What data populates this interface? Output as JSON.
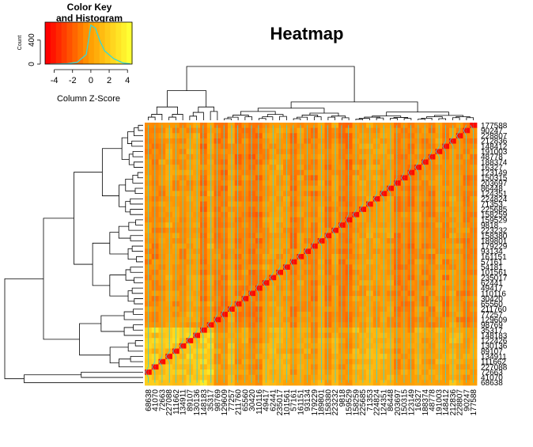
{
  "chart_data": {
    "type": "heatmap",
    "title": "Heatmap",
    "color_key": {
      "title_line1": "Color Key",
      "title_line2": "and Histogram",
      "xlabel": "Column Z-Score",
      "ylabel": "Count",
      "x_ticks": [
        "-4",
        "-2",
        "0",
        "2",
        "4"
      ],
      "y_ticks": [
        "0",
        "400"
      ],
      "x_range": [
        -5,
        4.5
      ],
      "y_range": [
        0,
        700
      ],
      "histogram": [
        [
          -4.5,
          0
        ],
        [
          -3.5,
          2
        ],
        [
          -2.5,
          8
        ],
        [
          -1.5,
          30
        ],
        [
          -0.5,
          160
        ],
        [
          0.0,
          650
        ],
        [
          0.5,
          600
        ],
        [
          1.0,
          380
        ],
        [
          1.5,
          220
        ],
        [
          2.5,
          90
        ],
        [
          3.5,
          20
        ],
        [
          4.3,
          5
        ]
      ]
    },
    "colors": {
      "low": "#ff0000",
      "mid": "#ff9900",
      "high": "#ffff33",
      "trace": "#36d7d7",
      "dendrogram": "#000000"
    },
    "row_labels": [
      "177588",
      "90247",
      "228807",
      "212836",
      "148412",
      "191003",
      "48778",
      "188374",
      "16327",
      "123149",
      "150315",
      "203697",
      "86448",
      "124351",
      "224824",
      "71353",
      "225685",
      "158259",
      "159529",
      "9818",
      "223232",
      "158380",
      "189801",
      "179229",
      "93134",
      "161151",
      "57161",
      "54181",
      "101561",
      "235017",
      "62441",
      "49417",
      "110116",
      "30420",
      "65560",
      "211760",
      "77257",
      "129609",
      "98769",
      "35317",
      "148183",
      "122426",
      "130136",
      "89107",
      "134911",
      "111662",
      "227088",
      "72663",
      "41070",
      "68638"
    ],
    "column_labels": [
      "68638",
      "41070",
      "72663",
      "227088",
      "111662",
      "134911",
      "89107",
      "130136",
      "148183",
      "35317",
      "98769",
      "129609",
      "77257",
      "211760",
      "65560",
      "30420",
      "110116",
      "49417",
      "62441",
      "235017",
      "101561",
      "57161",
      "161151",
      "93134",
      "179229",
      "189801",
      "158380",
      "223232",
      "9818",
      "159529",
      "158259",
      "225685",
      "71353",
      "224824",
      "124351",
      "86448",
      "203697",
      "150315",
      "123149",
      "16327",
      "188374",
      "48778",
      "191003",
      "148412",
      "212836",
      "228807",
      "90247",
      "177588"
    ]
  }
}
